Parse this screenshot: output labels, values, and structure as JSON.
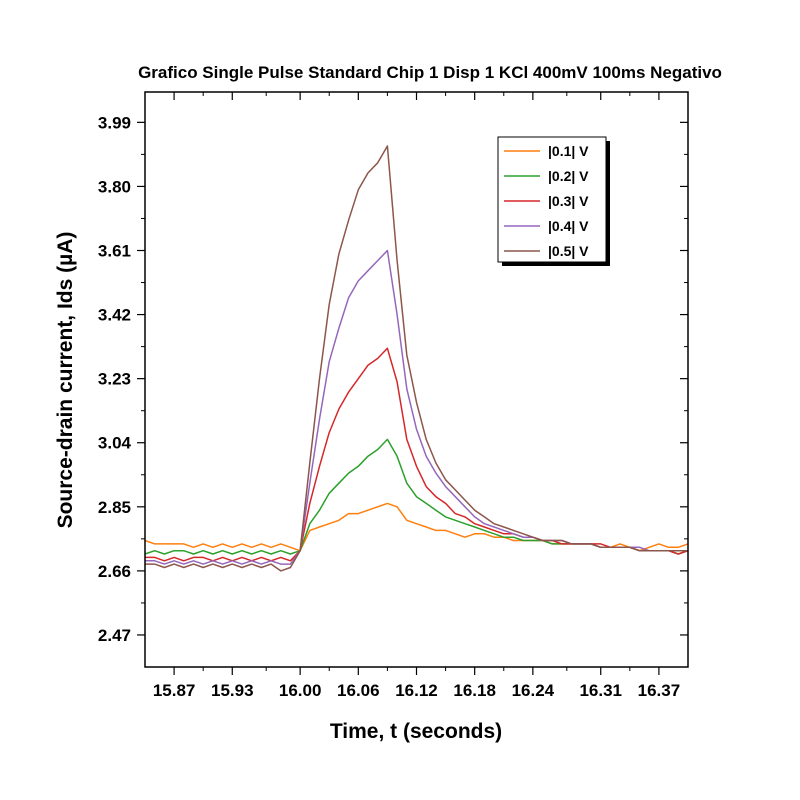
{
  "chart_data": {
    "type": "line",
    "title": "Grafico Single Pulse Standard Chip 1 Disp 1 KCl 400mV 100ms Negativo",
    "xlabel": "Time, t (seconds)",
    "ylabel": "Source-drain current, Ids (µA)",
    "xlim": [
      15.84,
      16.4
    ],
    "ylim": [
      2.375,
      4.08
    ],
    "x_ticks": [
      15.87,
      15.93,
      16.0,
      16.06,
      16.12,
      16.18,
      16.24,
      16.31,
      16.37
    ],
    "x_tick_labels": [
      "15.87",
      "15.93",
      "16.00",
      "16.06",
      "16.12",
      "16.18",
      "16.24",
      "16.31",
      "16.37"
    ],
    "y_ticks": [
      2.47,
      2.66,
      2.85,
      3.04,
      3.23,
      3.42,
      3.61,
      3.8,
      3.99
    ],
    "y_tick_labels": [
      "2.47",
      "2.66",
      "2.85",
      "3.04",
      "3.23",
      "3.42",
      "3.61",
      "3.80",
      "3.99"
    ],
    "grid": false,
    "legend_position": "top-right",
    "x": [
      15.84,
      15.85,
      15.86,
      15.87,
      15.88,
      15.89,
      15.9,
      15.91,
      15.92,
      15.93,
      15.94,
      15.95,
      15.96,
      15.97,
      15.98,
      15.99,
      16.0,
      16.01,
      16.02,
      16.03,
      16.04,
      16.05,
      16.06,
      16.07,
      16.08,
      16.09,
      16.1,
      16.11,
      16.12,
      16.13,
      16.14,
      16.15,
      16.16,
      16.17,
      16.18,
      16.19,
      16.2,
      16.21,
      16.22,
      16.23,
      16.24,
      16.25,
      16.26,
      16.27,
      16.28,
      16.29,
      16.3,
      16.31,
      16.32,
      16.33,
      16.34,
      16.35,
      16.36,
      16.37,
      16.38,
      16.39,
      16.4
    ],
    "series": [
      {
        "name": "|0.1| V",
        "color": "#ff7f0e",
        "values": [
          2.75,
          2.74,
          2.74,
          2.74,
          2.74,
          2.73,
          2.74,
          2.73,
          2.74,
          2.73,
          2.74,
          2.73,
          2.74,
          2.73,
          2.74,
          2.73,
          2.72,
          2.78,
          2.79,
          2.8,
          2.81,
          2.83,
          2.83,
          2.84,
          2.85,
          2.86,
          2.85,
          2.81,
          2.8,
          2.79,
          2.78,
          2.78,
          2.77,
          2.76,
          2.77,
          2.77,
          2.76,
          2.76,
          2.75,
          2.75,
          2.75,
          2.75,
          2.74,
          2.74,
          2.74,
          2.74,
          2.74,
          2.73,
          2.73,
          2.74,
          2.73,
          2.72,
          2.73,
          2.74,
          2.73,
          2.73,
          2.74
        ]
      },
      {
        "name": "|0.2| V",
        "color": "#2ca02c",
        "values": [
          2.71,
          2.72,
          2.71,
          2.72,
          2.72,
          2.71,
          2.72,
          2.71,
          2.72,
          2.71,
          2.72,
          2.71,
          2.72,
          2.71,
          2.72,
          2.71,
          2.72,
          2.8,
          2.84,
          2.89,
          2.92,
          2.95,
          2.97,
          3.0,
          3.02,
          3.05,
          3.0,
          2.92,
          2.88,
          2.86,
          2.84,
          2.82,
          2.81,
          2.8,
          2.79,
          2.78,
          2.77,
          2.76,
          2.76,
          2.75,
          2.75,
          2.75,
          2.74,
          2.74,
          2.74,
          2.74,
          2.74,
          2.73,
          2.73,
          2.73,
          2.73,
          2.72,
          2.72,
          2.72,
          2.72,
          2.71,
          2.72
        ]
      },
      {
        "name": "|0.3| V",
        "color": "#d62728",
        "values": [
          2.7,
          2.7,
          2.69,
          2.7,
          2.69,
          2.7,
          2.7,
          2.69,
          2.7,
          2.69,
          2.7,
          2.69,
          2.7,
          2.69,
          2.7,
          2.69,
          2.72,
          2.86,
          2.97,
          3.07,
          3.14,
          3.19,
          3.23,
          3.27,
          3.29,
          3.32,
          3.22,
          3.05,
          2.97,
          2.91,
          2.88,
          2.86,
          2.83,
          2.82,
          2.8,
          2.79,
          2.78,
          2.77,
          2.77,
          2.76,
          2.76,
          2.75,
          2.75,
          2.74,
          2.74,
          2.74,
          2.74,
          2.74,
          2.73,
          2.73,
          2.73,
          2.72,
          2.72,
          2.72,
          2.72,
          2.71,
          2.72
        ]
      },
      {
        "name": "|0.4| V",
        "color": "#9467bd",
        "values": [
          2.69,
          2.69,
          2.68,
          2.69,
          2.68,
          2.69,
          2.68,
          2.69,
          2.68,
          2.69,
          2.68,
          2.69,
          2.68,
          2.69,
          2.68,
          2.68,
          2.72,
          2.92,
          3.11,
          3.28,
          3.38,
          3.47,
          3.52,
          3.55,
          3.58,
          3.61,
          3.42,
          3.2,
          3.08,
          3.0,
          2.95,
          2.91,
          2.88,
          2.85,
          2.82,
          2.8,
          2.79,
          2.78,
          2.77,
          2.76,
          2.76,
          2.75,
          2.75,
          2.75,
          2.74,
          2.74,
          2.74,
          2.73,
          2.73,
          2.73,
          2.73,
          2.73,
          2.72,
          2.72,
          2.72,
          2.72,
          2.72
        ]
      },
      {
        "name": "|0.5| V",
        "color": "#8c564b",
        "values": [
          2.68,
          2.68,
          2.67,
          2.68,
          2.67,
          2.68,
          2.67,
          2.68,
          2.67,
          2.68,
          2.67,
          2.68,
          2.67,
          2.68,
          2.66,
          2.67,
          2.72,
          2.98,
          3.23,
          3.45,
          3.6,
          3.7,
          3.79,
          3.84,
          3.87,
          3.92,
          3.58,
          3.3,
          3.16,
          3.05,
          2.98,
          2.93,
          2.9,
          2.87,
          2.84,
          2.82,
          2.8,
          2.79,
          2.78,
          2.77,
          2.76,
          2.75,
          2.75,
          2.75,
          2.74,
          2.74,
          2.74,
          2.73,
          2.73,
          2.73,
          2.73,
          2.72,
          2.72,
          2.72,
          2.72,
          2.72,
          2.72
        ]
      }
    ]
  }
}
